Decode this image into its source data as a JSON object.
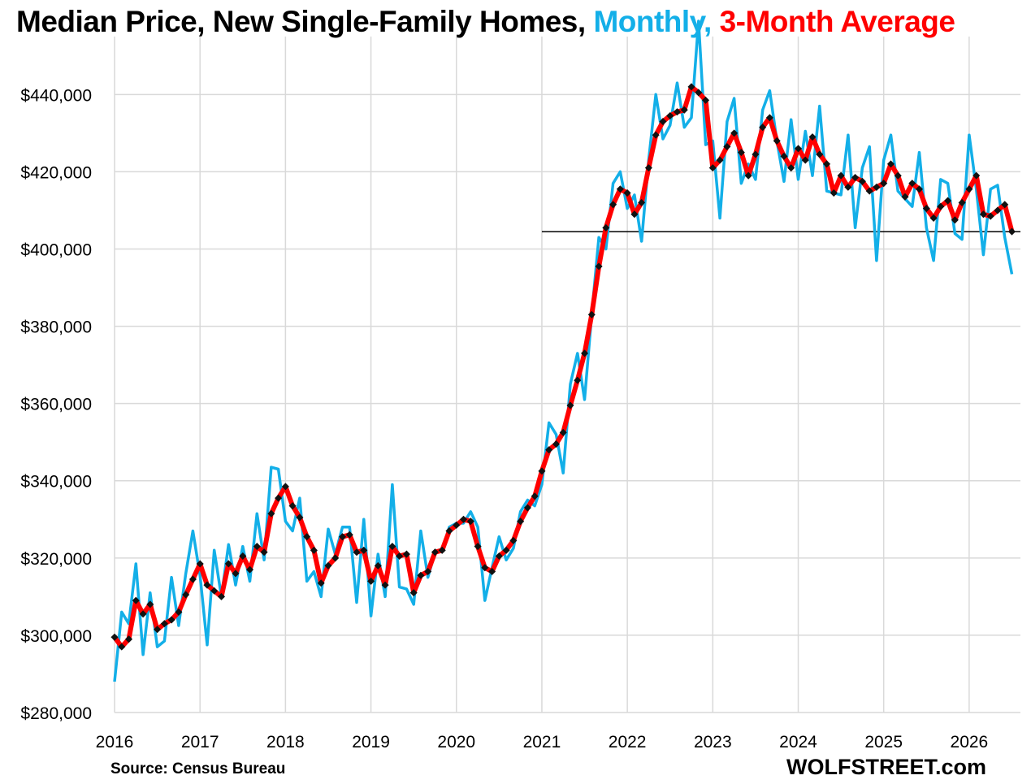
{
  "title": {
    "main": "Median Price, New Single-Family Homes,",
    "series1": "Monthly,",
    "series2": "3-Month Average"
  },
  "source": "Source: Census Bureau",
  "brand": "WOLFSTREET.com",
  "colors": {
    "monthly": "#13afe8",
    "average": "#ff0000",
    "markers": "#111111",
    "reference": "#000000",
    "grid": "#d9d9d9"
  },
  "chart_data": {
    "type": "line",
    "x_start": 2016.0,
    "x_step": 0.0833333,
    "xlim": [
      2016,
      2026.6
    ],
    "ylim": [
      280000,
      455000
    ],
    "grid": true,
    "y_ticks": [
      280000,
      300000,
      320000,
      340000,
      360000,
      380000,
      400000,
      420000,
      440000
    ],
    "y_tick_labels": [
      "$280,000",
      "$300,000",
      "$320,000",
      "$340,000",
      "$360,000",
      "$380,000",
      "$400,000",
      "$420,000",
      "$440,000"
    ],
    "x_ticks": [
      2016,
      2017,
      2018,
      2019,
      2020,
      2021,
      2022,
      2023,
      2024,
      2025,
      2026
    ],
    "x_tick_labels": [
      "2016",
      "2017",
      "2018",
      "2019",
      "2020",
      "2021",
      "2022",
      "2023",
      "2024",
      "2025",
      "2026"
    ],
    "reference_line": {
      "value": 404500,
      "x_from": 2021.0,
      "x_to": 2026.6
    },
    "series": [
      {
        "name": "Monthly",
        "values": [
          288000,
          306000,
          303000,
          318500,
          295000,
          311000,
          297000,
          298500,
          315000,
          302500,
          316000,
          327000,
          315500,
          297500,
          322000,
          310000,
          323500,
          313000,
          323000,
          314000,
          331500,
          319500,
          343500,
          343000,
          329500,
          327000,
          335500,
          314000,
          316500,
          310000,
          327500,
          321000,
          328000,
          328000,
          308500,
          330000,
          305000,
          321000,
          310000,
          339000,
          312500,
          312000,
          308000,
          327000,
          315000,
          321500,
          322000,
          328000,
          329000,
          329000,
          332000,
          328000,
          309000,
          317500,
          325500,
          319500,
          322500,
          332000,
          335000,
          333500,
          339000,
          355000,
          352000,
          342000,
          365000,
          373000,
          361000,
          383000,
          403000,
          400000,
          417000,
          420000,
          410500,
          414000,
          402000,
          423000,
          440000,
          428500,
          432000,
          443000,
          431500,
          434000,
          459000,
          427000,
          428000,
          408000,
          433000,
          439000,
          417000,
          422000,
          418000,
          436000,
          441000,
          428000,
          417500,
          433500,
          418000,
          430500,
          419000,
          437000,
          415000,
          414500,
          414000,
          429500,
          405500,
          421000,
          426500,
          397000,
          423000,
          429500,
          415000,
          413000,
          411000,
          425000,
          405500,
          397000,
          418000,
          417000,
          404000,
          402500,
          429500,
          415500,
          398500,
          415500,
          416500,
          403000,
          393500
        ]
      },
      {
        "name": "3-Month Average",
        "values": [
          299500,
          297000,
          299000,
          309000,
          305500,
          308000,
          301500,
          303000,
          304000,
          306000,
          310500,
          314500,
          318500,
          313000,
          311500,
          310000,
          318500,
          316000,
          320500,
          317000,
          323000,
          321500,
          331500,
          335500,
          338500,
          333500,
          330500,
          325500,
          322000,
          313500,
          318000,
          320000,
          325500,
          326000,
          321500,
          322000,
          314000,
          318000,
          313000,
          323000,
          320500,
          321000,
          311000,
          315500,
          316500,
          321500,
          322000,
          327000,
          328500,
          330000,
          329500,
          323000,
          317500,
          316500,
          320500,
          322000,
          324500,
          329500,
          333000,
          336000,
          342500,
          348000,
          349500,
          352500,
          359500,
          366000,
          373000,
          383000,
          395500,
          405500,
          411500,
          415500,
          414500,
          409000,
          412000,
          421000,
          429500,
          433000,
          434500,
          435500,
          436000,
          442000,
          440500,
          438500,
          421000,
          423000,
          426500,
          430000,
          425000,
          419000,
          424500,
          431500,
          434000,
          428000,
          424000,
          421000,
          426000,
          423000,
          429000,
          424500,
          422000,
          414500,
          419000,
          416000,
          418500,
          417500,
          415000,
          416000,
          417000,
          422000,
          419000,
          413500,
          417000,
          415500,
          410500,
          408000,
          411000,
          412500,
          407500,
          412000,
          415500,
          419000,
          409000,
          408500,
          410000,
          411500,
          404500
        ]
      }
    ]
  }
}
